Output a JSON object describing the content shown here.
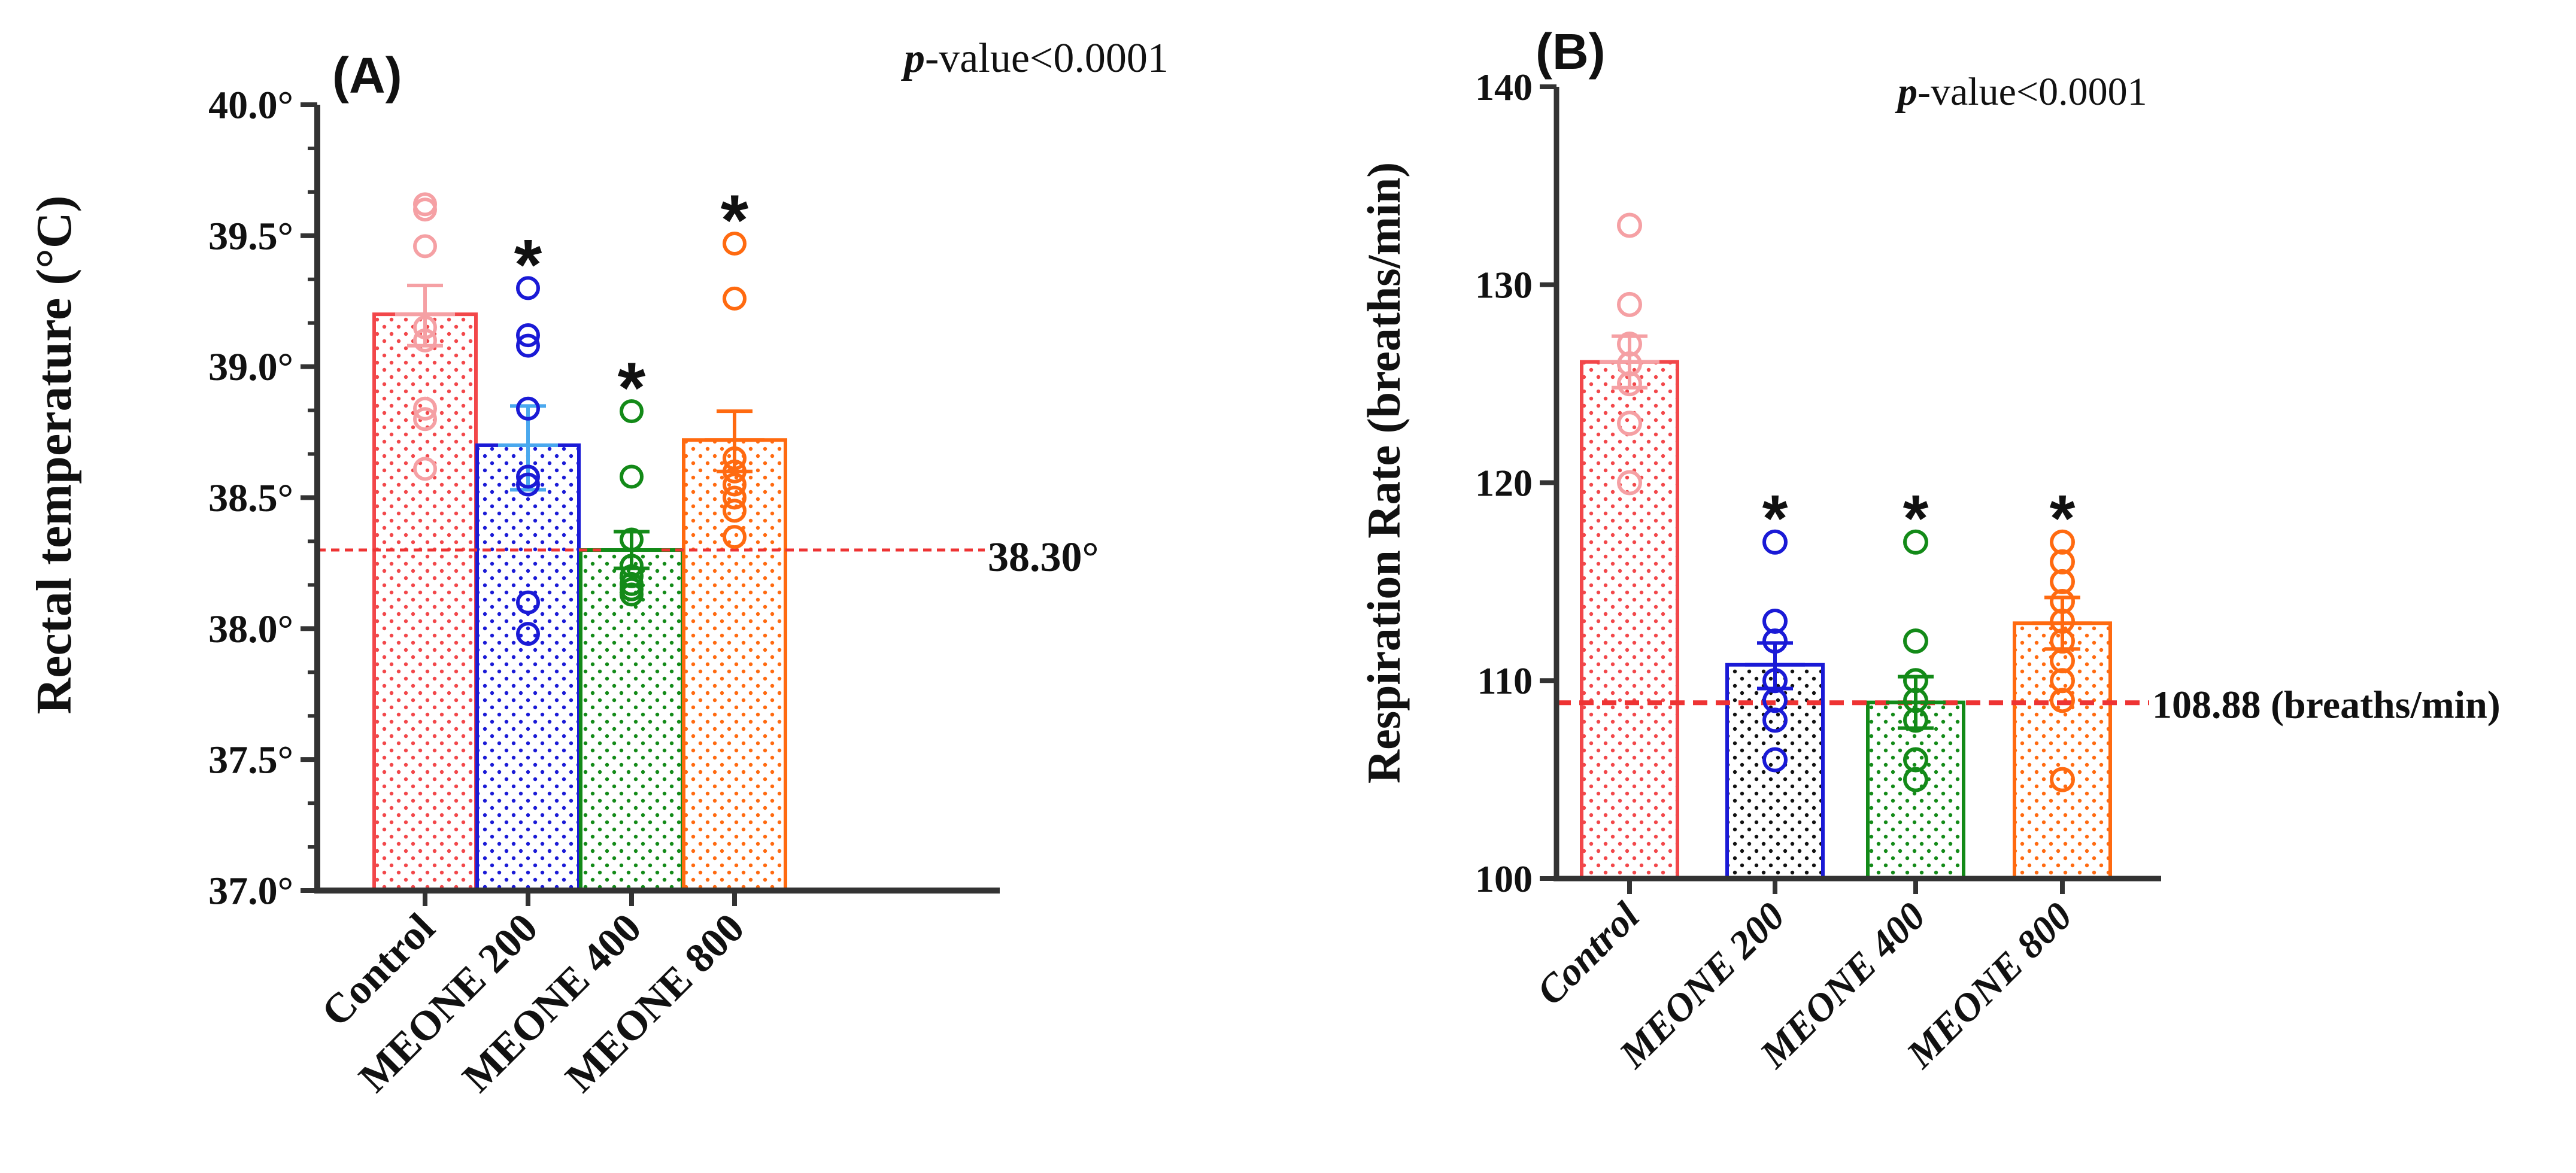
{
  "colors": {
    "control": "#f2474a",
    "control_light": "#f5a0a4",
    "meone200": "#1a1ad6",
    "meone400": "#138a18",
    "meone800": "#ff6a10",
    "reference_line": "#ee3333",
    "axis": "#333333",
    "text": "#111111"
  },
  "chart_data": [
    {
      "type": "bar",
      "panel_label": "(A)",
      "annotation": "-value<0.0001",
      "annotation_italic": "p",
      "ylabel": "Rectal temperature (°C)",
      "xlabel": "",
      "ylim": [
        37.0,
        40.0
      ],
      "yticks": [
        "37.0°",
        "37.5°",
        "38.0°",
        "38.5°",
        "39.0°",
        "39.5°",
        "40.0°"
      ],
      "categories": [
        "Control",
        "MEONE 200",
        "MEONE 400",
        "MEONE 800"
      ],
      "values": [
        39.2,
        38.7,
        38.3,
        38.72
      ],
      "error_upper": [
        39.31,
        38.85,
        38.37,
        38.83
      ],
      "error_lower": [
        39.08,
        38.53,
        38.23,
        38.6
      ],
      "points": [
        [
          39.62,
          39.6,
          39.46,
          39.15,
          39.1,
          38.84,
          38.8,
          38.61
        ],
        [
          39.3,
          39.12,
          39.08,
          38.84,
          38.58,
          38.55,
          38.1,
          37.98
        ],
        [
          38.83,
          38.58,
          38.34,
          38.24,
          38.2,
          38.17,
          38.15,
          38.13
        ],
        [
          39.47,
          39.26,
          38.65,
          38.6,
          38.55,
          38.5,
          38.45,
          38.35
        ]
      ],
      "significance": [
        "",
        "*",
        "*",
        "*"
      ],
      "reference_value": 38.3,
      "reference_label": "38.30°"
    },
    {
      "type": "bar",
      "panel_label": "(B)",
      "annotation": "-value<0.0001",
      "annotation_italic": "p",
      "ylabel": "Respiration Rate (breaths/min)",
      "xlabel": "",
      "ylim": [
        100,
        140
      ],
      "yticks": [
        "100",
        "110",
        "120",
        "130",
        "140"
      ],
      "categories": [
        "Control",
        "MEONE 200",
        "MEONE 400",
        "MEONE 800"
      ],
      "values": [
        126.1,
        110.8,
        108.9,
        112.9
      ],
      "error_upper": [
        127.4,
        111.9,
        110.2,
        114.2
      ],
      "error_lower": [
        124.8,
        109.6,
        107.6,
        111.6
      ],
      "points": [
        [
          133,
          129,
          127,
          126,
          125,
          123,
          120
        ],
        [
          117,
          113,
          112,
          110,
          109,
          108,
          106
        ],
        [
          117,
          112,
          110,
          109,
          108,
          106,
          105
        ],
        [
          117,
          116,
          115,
          114,
          113,
          112,
          111,
          110,
          109,
          105
        ]
      ],
      "significance": [
        "",
        "*",
        "*",
        "*"
      ],
      "reference_value": 108.88,
      "reference_label": "108.88 (breaths/min)"
    }
  ]
}
